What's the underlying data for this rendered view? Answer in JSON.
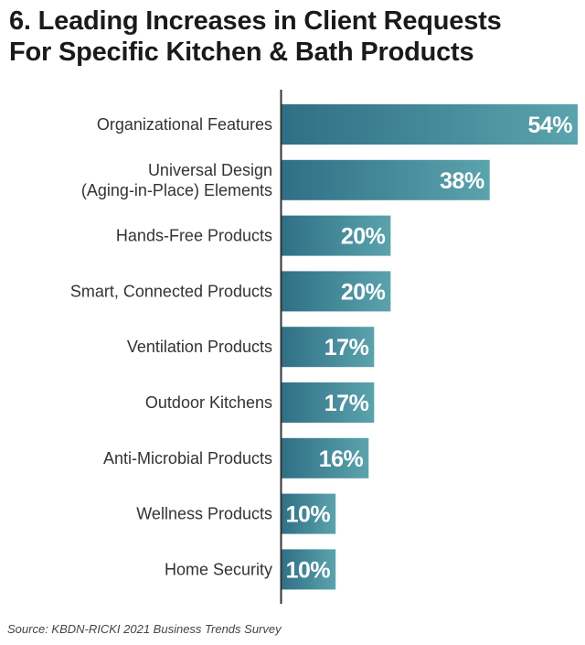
{
  "chart_data": {
    "type": "bar",
    "orientation": "horizontal",
    "title_lines": [
      "6. Leading Increases in Client Requests",
      "For Specific Kitchen & Bath Products"
    ],
    "categories": [
      [
        "Organizational Features"
      ],
      [
        "Universal Design",
        "(Aging-in-Place) Elements"
      ],
      [
        "Hands-Free Products"
      ],
      [
        "Smart, Connected Products"
      ],
      [
        "Ventilation Products"
      ],
      [
        "Outdoor Kitchens"
      ],
      [
        "Anti-Microbial Products"
      ],
      [
        "Wellness Products"
      ],
      [
        "Home Security"
      ]
    ],
    "values": [
      54,
      38,
      20,
      20,
      17,
      17,
      16,
      10,
      10
    ],
    "data_labels": [
      "54%",
      "38%",
      "20%",
      "20%",
      "17%",
      "17%",
      "16%",
      "10%",
      "10%"
    ],
    "xlim": [
      0,
      54
    ],
    "grid": false,
    "legend": "none",
    "colors": {
      "bar_start": "#2f6f85",
      "bar_end": "#5ba3ad",
      "axis": "#333333",
      "label_text": "#333333",
      "value_text": "#ffffff"
    }
  },
  "source": "Source: KBDN-RICKI 2021 Business Trends Survey"
}
